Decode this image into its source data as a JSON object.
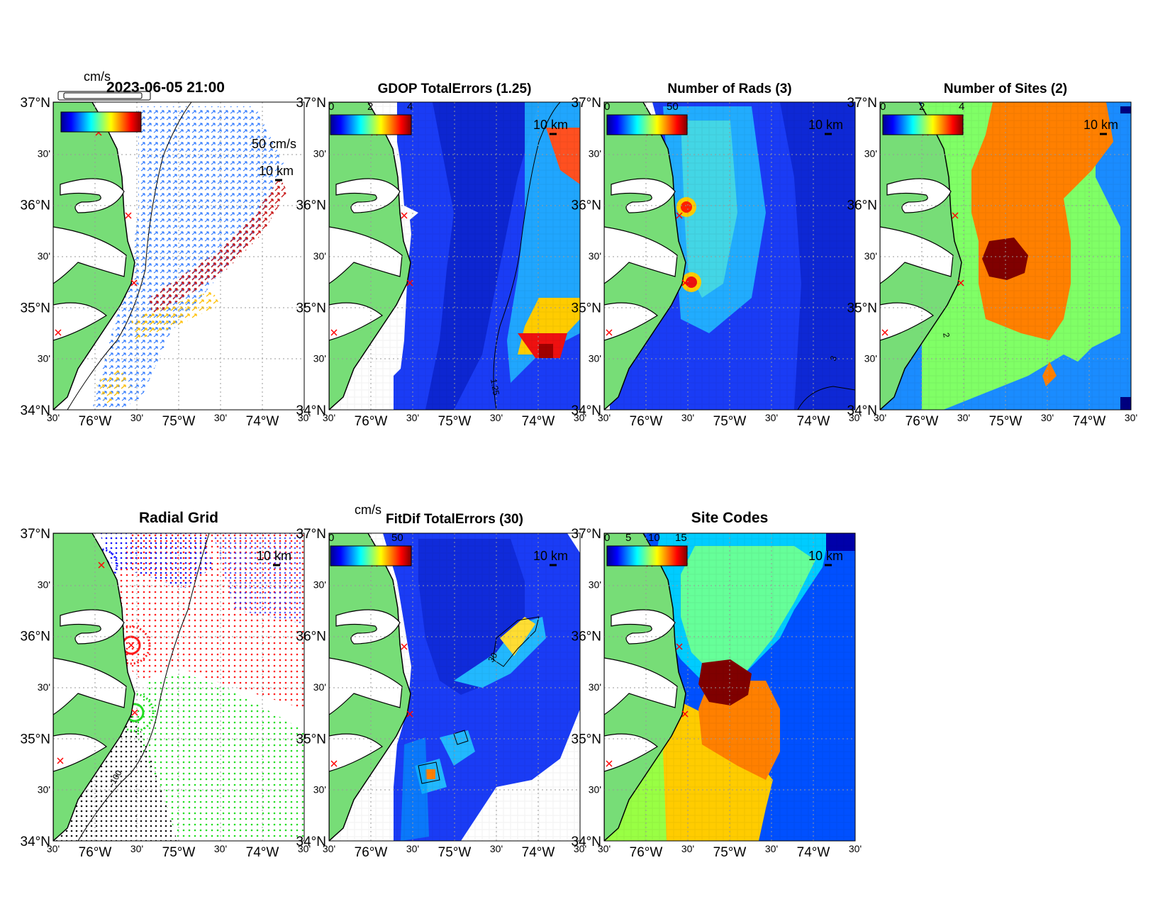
{
  "figure": {
    "timestamp": "2023-06-05 21:00",
    "units_top": "cm/s",
    "units_fitdif": "cm/s"
  },
  "axes": {
    "lat_labels": [
      "37°N",
      "30'",
      "36°N",
      "30'",
      "35°N",
      "30'",
      "34°N"
    ],
    "lon_labels": [
      "30'",
      "76°W",
      "30'",
      "75°W",
      "30'",
      "74°W",
      "30'"
    ]
  },
  "panels": [
    {
      "id": "currents",
      "title": "",
      "colorbar_ticks": [],
      "scale_bar": "10 km",
      "vector_label": "50 cm/s"
    },
    {
      "id": "gdop",
      "title": "GDOP TotalErrors (1.25)",
      "colorbar_ticks": [
        "0",
        "2",
        "4"
      ],
      "scale_bar": "10 km",
      "contour_label": "1.25"
    },
    {
      "id": "nrads",
      "title": "Number of Rads (3)",
      "colorbar_ticks": [
        "0",
        "50"
      ],
      "scale_bar": "10 km",
      "contour_label": "3"
    },
    {
      "id": "nsites",
      "title": "Number of Sites (2)",
      "colorbar_ticks": [
        "0",
        "2",
        "4"
      ],
      "scale_bar": "10 km",
      "contour_label": "2"
    },
    {
      "id": "radialgrid",
      "title": "Radial Grid",
      "colorbar_ticks": [],
      "scale_bar": "10 km",
      "contour_label": "-100"
    },
    {
      "id": "fitdif",
      "title": "FitDif TotalErrors (30)",
      "colorbar_ticks": [
        "0",
        "50"
      ],
      "scale_bar": "10 km",
      "contour_label": "30"
    },
    {
      "id": "sitecodes",
      "title": "Site Codes",
      "colorbar_ticks": [
        "0",
        "5",
        "10",
        "15"
      ],
      "scale_bar": "10 km"
    }
  ],
  "colors": {
    "land": "#77dd77",
    "water_blue": "#0a28d8",
    "site_marker": "#ff0000",
    "sites_ocean": "#1a8cff",
    "sites_two": "#80ff66",
    "sites_three": "#ff8000",
    "sites_four": "#800000"
  }
}
